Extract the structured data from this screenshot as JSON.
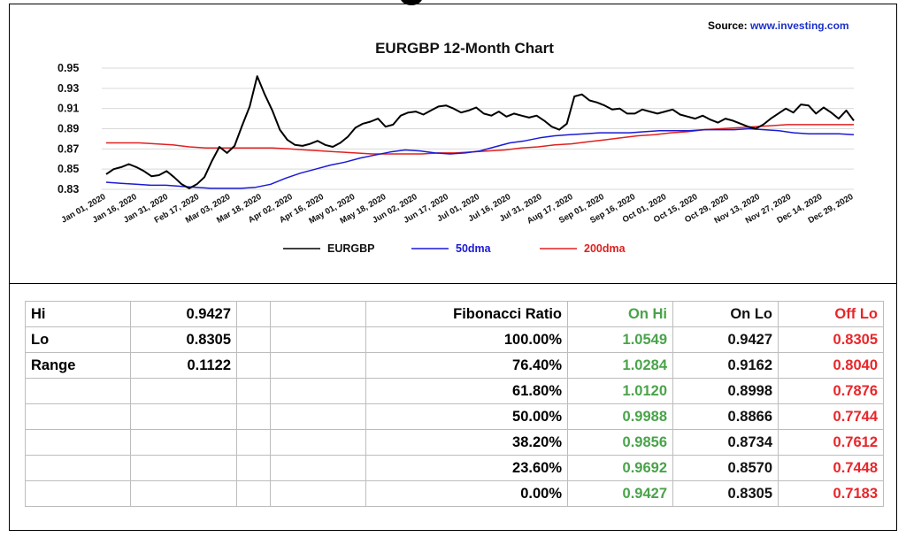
{
  "source": {
    "label": "Source:",
    "url": "www.investing.com"
  },
  "chart_data": {
    "type": "line",
    "title": "EURGBP  12-Month Chart",
    "xlabel": "",
    "ylabel": "",
    "ylim": [
      0.83,
      0.95
    ],
    "y_ticks": [
      "0.95",
      "0.93",
      "0.91",
      "0.89",
      "0.87",
      "0.85",
      "0.83"
    ],
    "x_ticks": [
      "Jan 01, 2020",
      "Jan 16, 2020",
      "Jan 31, 2020",
      "Feb 17, 2020",
      "Mar 03, 2020",
      "Mar 18, 2020",
      "Apr 02, 2020",
      "Apr 16, 2020",
      "May 01, 2020",
      "May 18, 2020",
      "Jun 02, 2020",
      "Jun 17, 2020",
      "Jul 01, 2020",
      "Jul 16, 2020",
      "Jul 31, 2020",
      "Aug 17, 2020",
      "Sep 01, 2020",
      "Sep 16, 2020",
      "Oct 01, 2020",
      "Oct 15, 2020",
      "Oct 29, 2020",
      "Nov 13, 2020",
      "Nov 27, 2020",
      "Dec 14, 2020",
      "Dec 29, 2020"
    ],
    "grid": true,
    "legend_position": "bottom",
    "series": [
      {
        "name": "EURGBP",
        "color": "#000000",
        "values": [
          0.845,
          0.85,
          0.852,
          0.855,
          0.852,
          0.848,
          0.843,
          0.844,
          0.848,
          0.842,
          0.835,
          0.831,
          0.835,
          0.842,
          0.858,
          0.872,
          0.866,
          0.873,
          0.893,
          0.912,
          0.942,
          0.924,
          0.908,
          0.889,
          0.879,
          0.874,
          0.873,
          0.875,
          0.878,
          0.874,
          0.872,
          0.876,
          0.882,
          0.891,
          0.895,
          0.897,
          0.9,
          0.892,
          0.894,
          0.903,
          0.906,
          0.907,
          0.904,
          0.908,
          0.912,
          0.913,
          0.91,
          0.906,
          0.908,
          0.911,
          0.905,
          0.903,
          0.907,
          0.902,
          0.905,
          0.903,
          0.901,
          0.903,
          0.898,
          0.892,
          0.889,
          0.895,
          0.922,
          0.924,
          0.918,
          0.916,
          0.913,
          0.909,
          0.91,
          0.905,
          0.905,
          0.909,
          0.907,
          0.905,
          0.907,
          0.909,
          0.904,
          0.902,
          0.9,
          0.903,
          0.899,
          0.896,
          0.9,
          0.898,
          0.895,
          0.892,
          0.89,
          0.894,
          0.9,
          0.905,
          0.91,
          0.906,
          0.914,
          0.913,
          0.905,
          0.911,
          0.906,
          0.9,
          0.908,
          0.898
        ]
      },
      {
        "name": "50dma",
        "color": "#1a1ad6",
        "values": [
          0.837,
          0.836,
          0.835,
          0.834,
          0.834,
          0.833,
          0.832,
          0.831,
          0.831,
          0.831,
          0.832,
          0.835,
          0.841,
          0.846,
          0.85,
          0.854,
          0.857,
          0.861,
          0.864,
          0.867,
          0.869,
          0.868,
          0.866,
          0.865,
          0.866,
          0.868,
          0.872,
          0.876,
          0.878,
          0.881,
          0.883,
          0.884,
          0.885,
          0.886,
          0.886,
          0.886,
          0.887,
          0.888,
          0.888,
          0.888,
          0.889,
          0.889,
          0.889,
          0.89,
          0.889,
          0.888,
          0.886,
          0.885,
          0.885,
          0.885,
          0.884
        ]
      },
      {
        "name": "200dma",
        "color": "#e02020",
        "values": [
          0.876,
          0.876,
          0.876,
          0.875,
          0.874,
          0.872,
          0.871,
          0.871,
          0.871,
          0.871,
          0.871,
          0.87,
          0.869,
          0.868,
          0.867,
          0.866,
          0.865,
          0.865,
          0.865,
          0.865,
          0.866,
          0.866,
          0.867,
          0.868,
          0.869,
          0.871,
          0.872,
          0.874,
          0.875,
          0.877,
          0.879,
          0.881,
          0.883,
          0.884,
          0.886,
          0.887,
          0.889,
          0.89,
          0.891,
          0.892,
          0.893,
          0.894,
          0.894,
          0.894,
          0.894,
          0.894
        ]
      }
    ]
  },
  "table": {
    "stats": [
      {
        "label": "Hi",
        "value": "0.9427"
      },
      {
        "label": "Lo",
        "value": "0.8305"
      },
      {
        "label": "Range",
        "value": "0.1122"
      },
      {
        "label": "",
        "value": ""
      },
      {
        "label": "",
        "value": ""
      },
      {
        "label": "",
        "value": ""
      },
      {
        "label": "",
        "value": ""
      }
    ],
    "headers": {
      "ratio": "Fibonacci  Ratio",
      "on_hi": "On Hi",
      "on_lo": "On Lo",
      "off_lo": "Off Lo"
    },
    "rows": [
      {
        "ratio": "100.00%",
        "on_hi": "1.0549",
        "on_lo": "0.9427",
        "off_lo": "0.8305"
      },
      {
        "ratio": "76.40%",
        "on_hi": "1.0284",
        "on_lo": "0.9162",
        "off_lo": "0.8040"
      },
      {
        "ratio": "61.80%",
        "on_hi": "1.0120",
        "on_lo": "0.8998",
        "off_lo": "0.7876"
      },
      {
        "ratio": "50.00%",
        "on_hi": "0.9988",
        "on_lo": "0.8866",
        "off_lo": "0.7744"
      },
      {
        "ratio": "38.20%",
        "on_hi": "0.9856",
        "on_lo": "0.8734",
        "off_lo": "0.7612"
      },
      {
        "ratio": "23.60%",
        "on_hi": "0.9692",
        "on_lo": "0.8570",
        "off_lo": "0.7448"
      },
      {
        "ratio": "0.00%",
        "on_hi": "0.9427",
        "on_lo": "0.8305",
        "off_lo": "0.7183"
      }
    ],
    "colors": {
      "on_hi": "#4aa34a",
      "on_lo": "#111111",
      "off_lo": "#e8262a"
    }
  }
}
